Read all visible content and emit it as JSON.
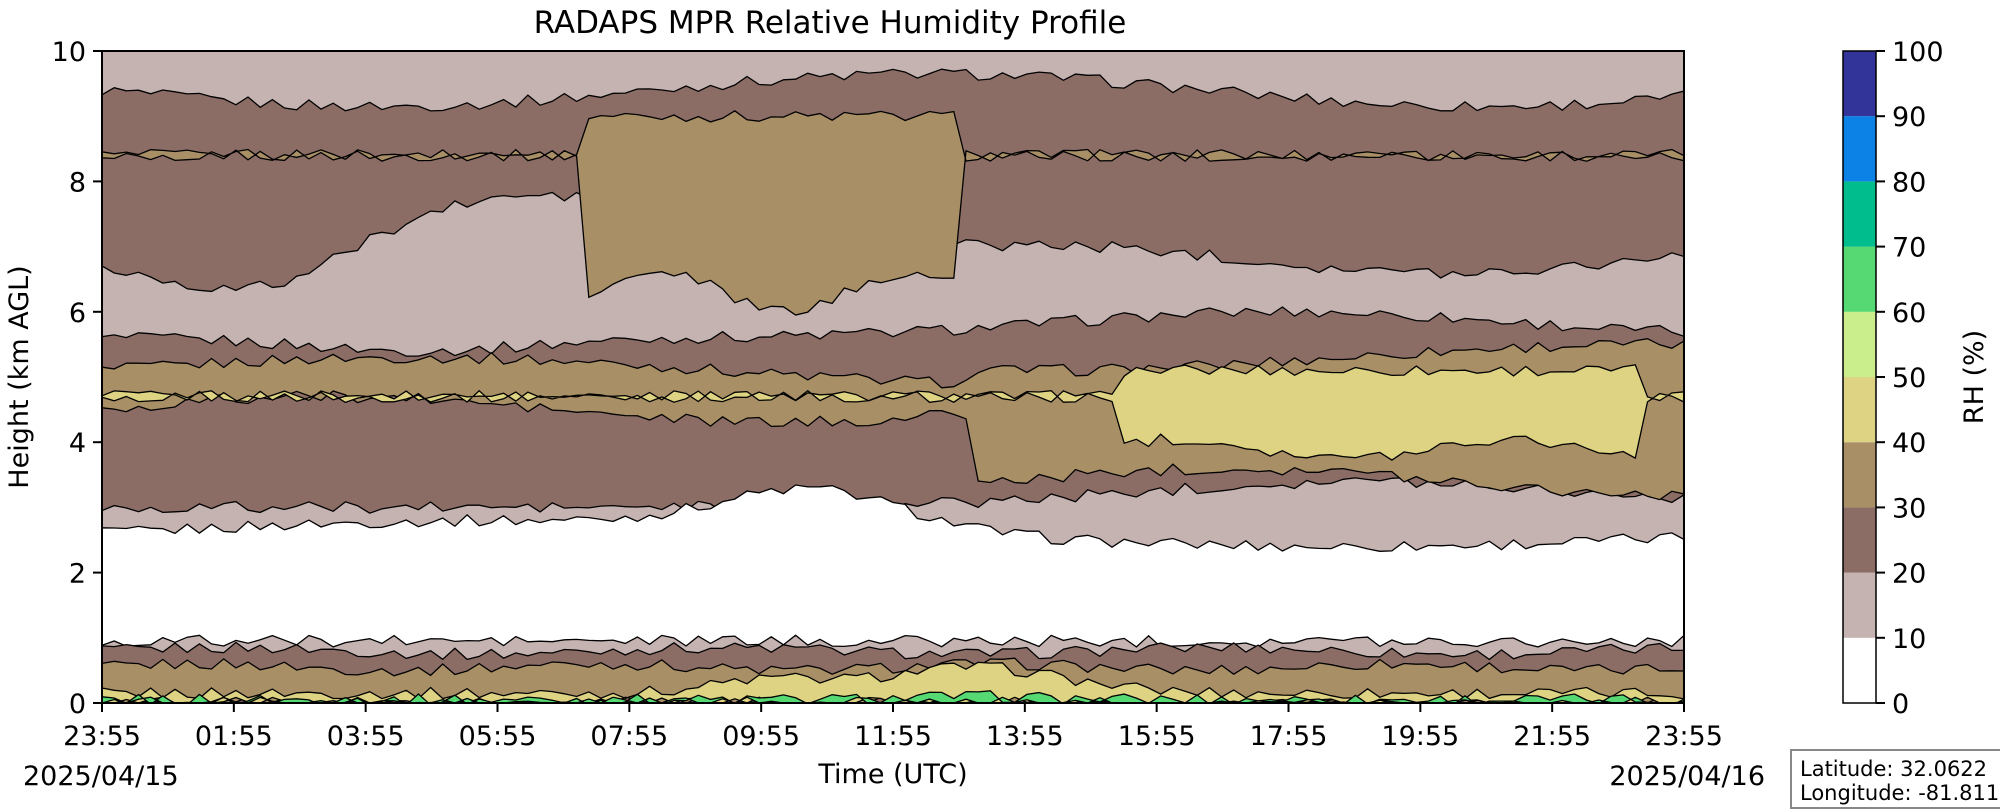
{
  "chart_data": {
    "type": "heatmap",
    "title": "RADAPS MPR Relative Humidity Profile",
    "xlabel": "Time (UTC)",
    "ylabel": "Height (km AGL)",
    "ylim": [
      0,
      10
    ],
    "x_ticks": [
      "23:55",
      "01:55",
      "03:55",
      "05:55",
      "07:55",
      "09:55",
      "11:55",
      "13:55",
      "15:55",
      "17:55",
      "19:55",
      "21:55",
      "23:55"
    ],
    "y_ticks": [
      "0",
      "2",
      "4",
      "6",
      "8",
      "10"
    ],
    "date_start": "2025/04/15",
    "date_end": "2025/04/16",
    "colorbar": {
      "label": "RH (%)",
      "levels": [
        0,
        10,
        20,
        30,
        40,
        50,
        60,
        70,
        80,
        90,
        100
      ],
      "tick_labels": [
        "0",
        "10",
        "20",
        "30",
        "40",
        "50",
        "60",
        "70",
        "80",
        "90",
        "100"
      ],
      "colors": [
        "#ffffff",
        "#c4b3b1",
        "#8b6d66",
        "#a88f66",
        "#ddd383",
        "#cbee8c",
        "#56d872",
        "#00bd8e",
        "#0c82e6",
        "#33349a"
      ]
    },
    "grid": false
  },
  "location": {
    "latitude": "Latitude: 32.0622",
    "longitude": "Longitude: -81.811"
  }
}
